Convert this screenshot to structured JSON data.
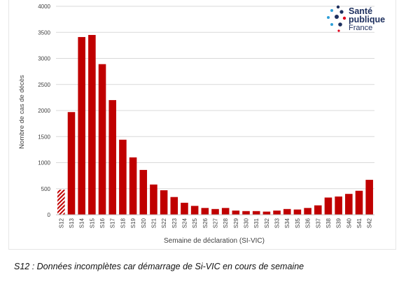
{
  "logo": {
    "line1": "Santé",
    "line2": "publique",
    "line3": "France"
  },
  "footnote": "S12 : Données incomplètes car démarrage de Si-VIC en cours de semaine",
  "colors": {
    "bar": "#c00000",
    "grid": "#d9d9d9",
    "axis_text": "#404040"
  },
  "chart_data": {
    "type": "bar",
    "title": "",
    "xlabel": "Semaine de déclaration (SI-VIC)",
    "ylabel": "Nombre de cas de décès",
    "ylim": [
      0,
      4000
    ],
    "yticks": [
      0,
      500,
      1000,
      1500,
      2000,
      2500,
      3000,
      3500,
      4000
    ],
    "grid": true,
    "categories": [
      "S12",
      "S13",
      "S14",
      "S15",
      "S16",
      "S17",
      "S18",
      "S19",
      "S20",
      "S21",
      "S22",
      "S23",
      "S24",
      "S25",
      "S26",
      "S27",
      "S28",
      "S29",
      "S30",
      "S31",
      "S32",
      "S33",
      "S34",
      "S35",
      "S36",
      "S37",
      "S38",
      "S39",
      "S40",
      "S41",
      "S42"
    ],
    "values": [
      480,
      1970,
      3410,
      3450,
      2890,
      2200,
      1440,
      1100,
      860,
      580,
      470,
      340,
      230,
      170,
      130,
      110,
      130,
      80,
      70,
      70,
      60,
      80,
      110,
      100,
      130,
      180,
      330,
      350,
      400,
      460,
      670
    ],
    "incomplete_categories": [
      "S12"
    ]
  }
}
